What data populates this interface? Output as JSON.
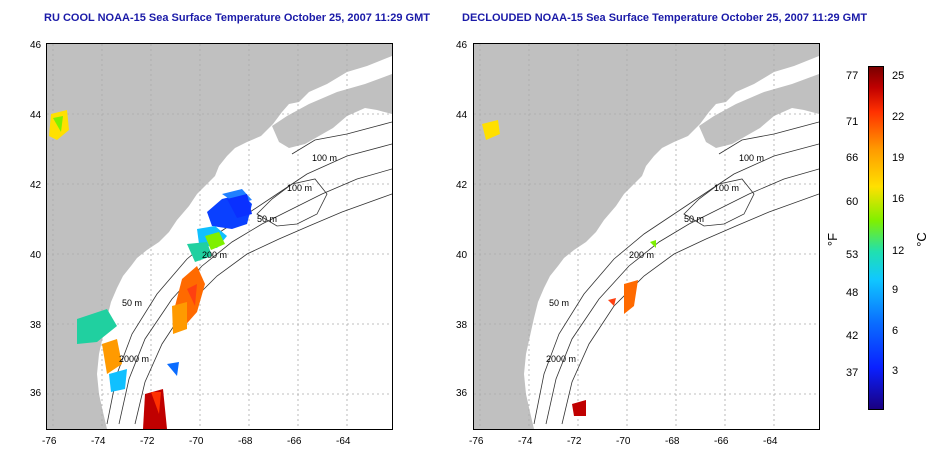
{
  "titles": {
    "left": "RU COOL NOAA-15 Sea Surface Temperature October 25, 2007 11:29 GMT",
    "right": "DECLOUDED NOAA-15 Sea Surface Temperature October 25, 2007 11:29 GMT"
  },
  "axes": {
    "lon_ticks": [
      "-76",
      "-74",
      "-72",
      "-70",
      "-68",
      "-66",
      "-64"
    ],
    "lat_ticks": [
      "46",
      "44",
      "42",
      "40",
      "38",
      "36"
    ]
  },
  "contours": {
    "left": [
      "100 m",
      "100 m",
      "50 m",
      "200 m",
      "50 m",
      "2000 m"
    ],
    "right": [
      "100 m",
      "100 m",
      "50 m",
      "200 m",
      "50 m",
      "2000 m"
    ]
  },
  "colorbar": {
    "fahrenheit_labels": [
      "77",
      "71",
      "66",
      "60",
      "53",
      "48",
      "42",
      "37"
    ],
    "celsius_labels": [
      "25",
      "22",
      "19",
      "16",
      "12",
      "9",
      "6",
      "3"
    ],
    "unit_f": "°F",
    "unit_c": "°C"
  },
  "colors": {
    "land": "#c0c0c0",
    "title": "#1a1aa8",
    "grid": "#aaaaaa"
  }
}
